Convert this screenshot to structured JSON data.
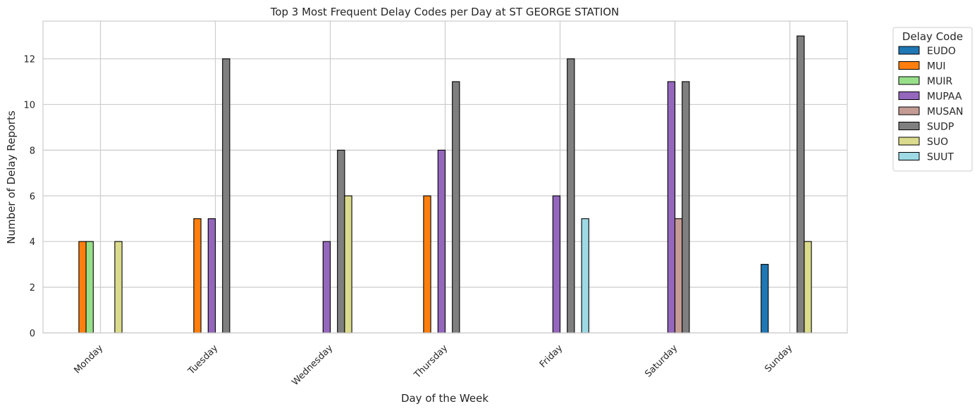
{
  "chart_data": {
    "type": "bar",
    "title": "Top 3 Most Frequent Delay Codes per Day at ST GEORGE STATION",
    "xlabel": "Day of the Week",
    "ylabel": "Number of Delay Reports",
    "categories": [
      "Monday",
      "Tuesday",
      "Wednesday",
      "Thursday",
      "Friday",
      "Saturday",
      "Sunday"
    ],
    "ylim": [
      0,
      13.65
    ],
    "yticks": [
      0,
      2,
      4,
      6,
      8,
      10,
      12
    ],
    "grid": true,
    "legend": {
      "title": "Delay Code",
      "placement": "outside-right-top"
    },
    "series": [
      {
        "name": "EUDO",
        "color": "#1f77b4",
        "values": [
          0,
          0,
          0,
          0,
          0,
          0,
          3
        ]
      },
      {
        "name": "MUI",
        "color": "#ff7f0e",
        "values": [
          4,
          5,
          0,
          6,
          0,
          0,
          0
        ]
      },
      {
        "name": "MUIR",
        "color": "#98df8a",
        "values": [
          4,
          0,
          0,
          0,
          0,
          0,
          0
        ]
      },
      {
        "name": "MUPAA",
        "color": "#9467bd",
        "values": [
          0,
          5,
          4,
          8,
          6,
          11,
          0
        ]
      },
      {
        "name": "MUSAN",
        "color": "#c49c94",
        "values": [
          0,
          0,
          0,
          0,
          0,
          5,
          0
        ]
      },
      {
        "name": "SUDP",
        "color": "#7f7f7f",
        "values": [
          0,
          12,
          8,
          11,
          12,
          11,
          13
        ]
      },
      {
        "name": "SUO",
        "color": "#dbdb8d",
        "values": [
          4,
          0,
          6,
          0,
          0,
          0,
          4
        ]
      },
      {
        "name": "SUUT",
        "color": "#9edae5",
        "values": [
          0,
          0,
          0,
          0,
          5,
          0,
          0
        ]
      }
    ]
  }
}
